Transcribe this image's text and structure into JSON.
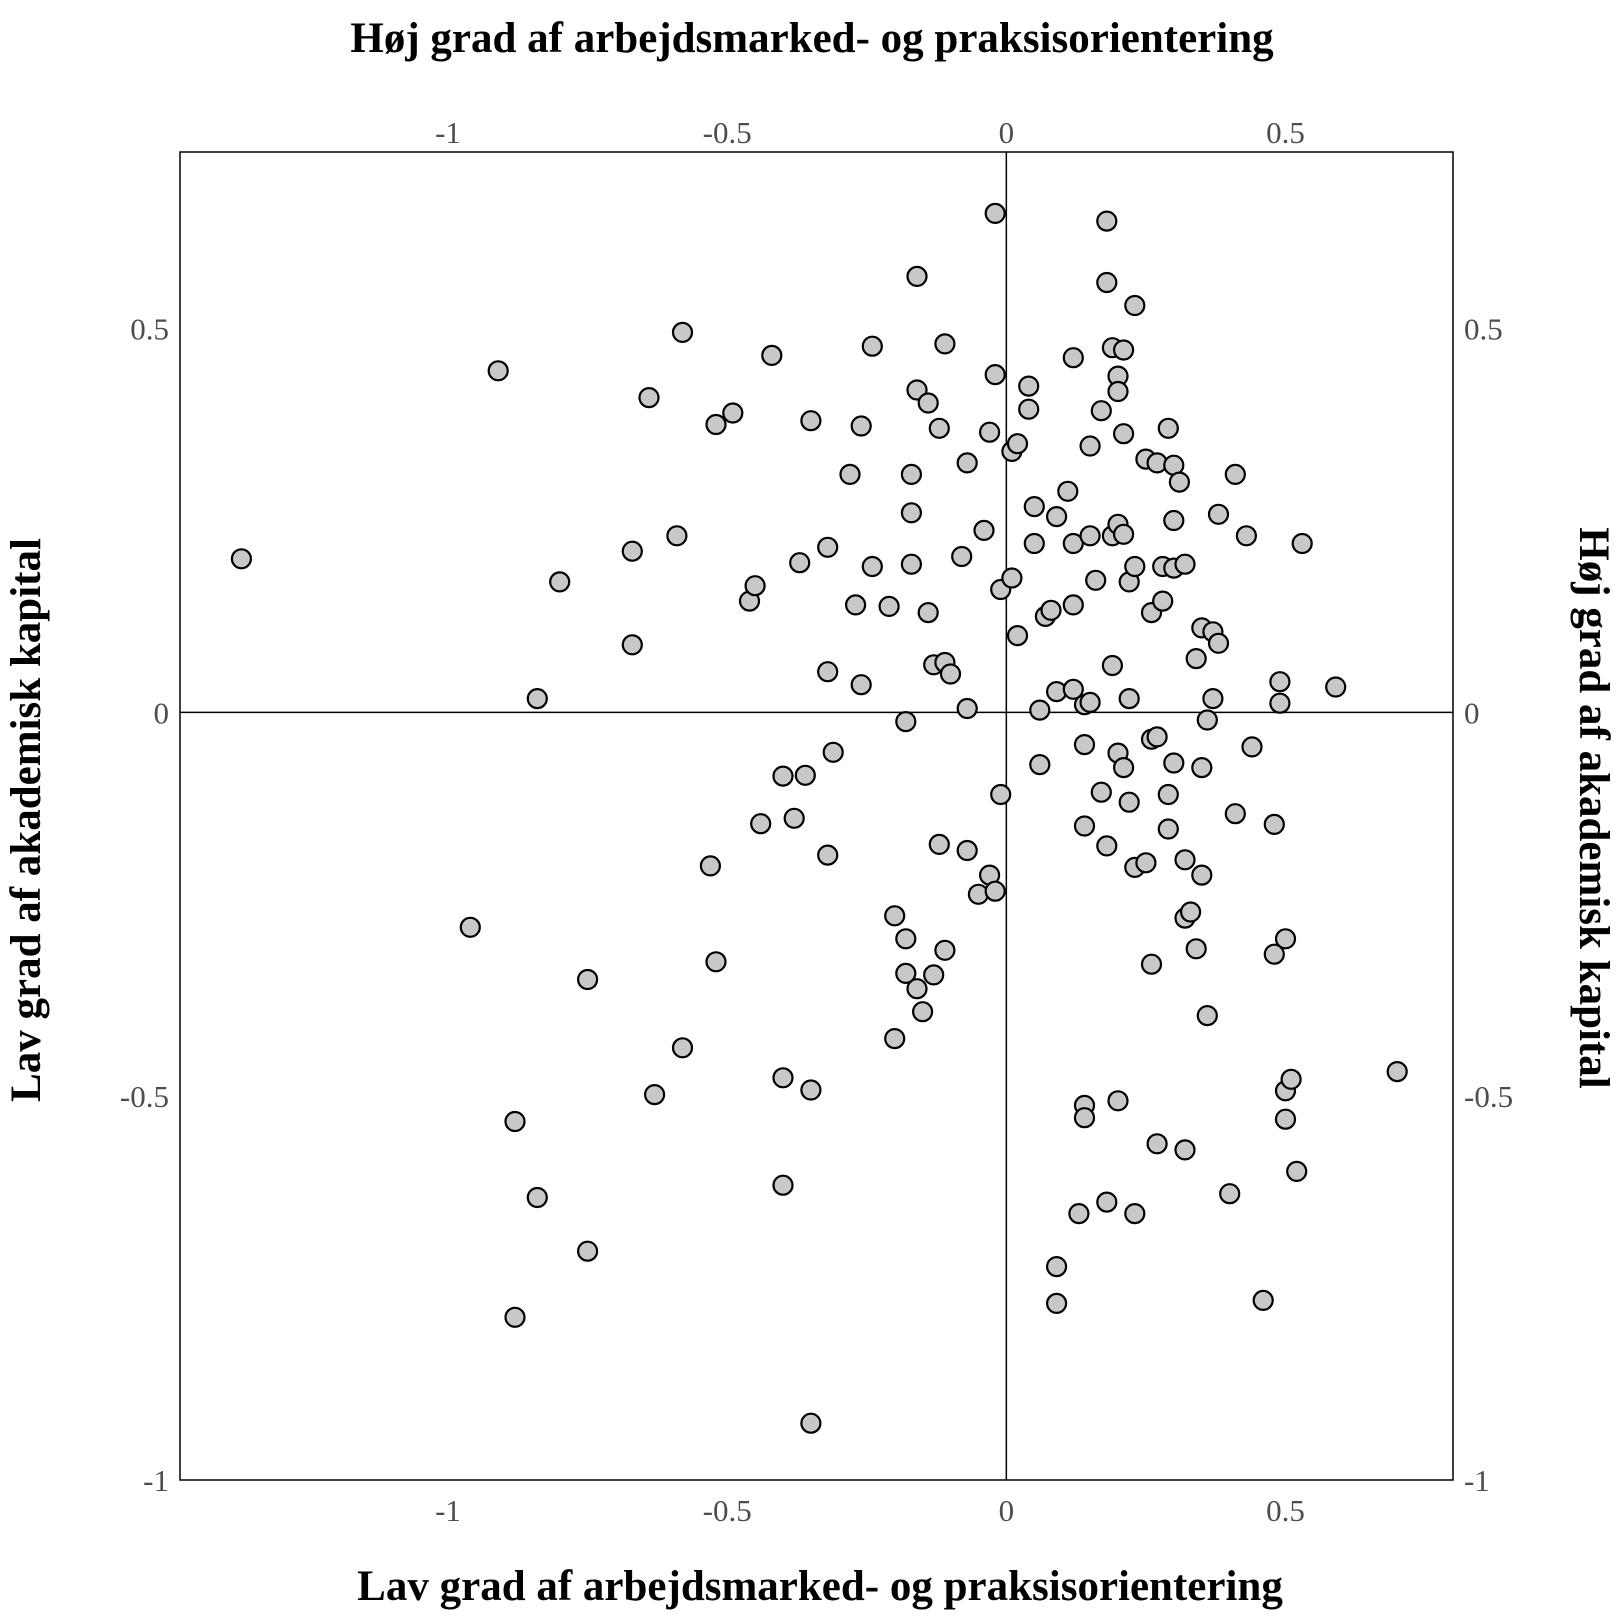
{
  "chart_data": {
    "type": "scatter",
    "title_top": "Høj grad af arbejdsmarked- og praksisorientering",
    "title_bottom": "Lav grad af arbejdsmarked- og praksisorientering",
    "title_left": "Lav grad af akademisk kapital",
    "title_right": "Høj grad af akademisk kapital",
    "xlim": [
      -1.48,
      0.8
    ],
    "ylim": [
      -1,
      0.73
    ],
    "x_ticks": [
      -1,
      -0.5,
      0,
      0.5
    ],
    "x_tick_labels": [
      "-1",
      "-0.5",
      "0",
      "0.5"
    ],
    "y_ticks": [
      0.5,
      0,
      -0.5,
      -1
    ],
    "y_tick_labels": [
      "0.5",
      "0",
      "-0.5",
      "-1"
    ],
    "reference_lines": {
      "x": 0,
      "y": 0
    },
    "grid": false,
    "legend": "none",
    "marker_fill": "#c8c8c8",
    "marker_stroke": "#000000",
    "points": [
      [
        -1.37,
        0.2
      ],
      [
        -0.91,
        0.445
      ],
      [
        -0.84,
        0.018
      ],
      [
        -0.8,
        0.17
      ],
      [
        -0.67,
        0.21
      ],
      [
        -0.67,
        0.088
      ],
      [
        -0.64,
        0.41
      ],
      [
        -0.59,
        0.23
      ],
      [
        -0.58,
        0.495
      ],
      [
        -0.52,
        0.375
      ],
      [
        -0.49,
        0.39
      ],
      [
        -0.46,
        0.145
      ],
      [
        -0.45,
        0.165
      ],
      [
        -0.42,
        0.465
      ],
      [
        -0.37,
        0.195
      ],
      [
        -0.35,
        0.38
      ],
      [
        -0.32,
        0.215
      ],
      [
        -0.32,
        0.053
      ],
      [
        -0.28,
        0.31
      ],
      [
        -0.27,
        0.14
      ],
      [
        -0.26,
        0.373
      ],
      [
        -0.26,
        0.036
      ],
      [
        -0.24,
        0.477
      ],
      [
        -0.24,
        0.19
      ],
      [
        -0.21,
        0.138
      ],
      [
        -0.18,
        -0.012
      ],
      [
        -0.17,
        0.193
      ],
      [
        -0.17,
        0.31
      ],
      [
        -0.17,
        0.26
      ],
      [
        -0.16,
        0.568
      ],
      [
        -0.16,
        0.42
      ],
      [
        -0.14,
        0.403
      ],
      [
        -0.14,
        0.13
      ],
      [
        -0.13,
        0.062
      ],
      [
        -0.12,
        0.37
      ],
      [
        -0.11,
        0.48
      ],
      [
        -0.11,
        0.065
      ],
      [
        -0.1,
        0.05
      ],
      [
        -0.08,
        0.203
      ],
      [
        -0.07,
        0.005
      ],
      [
        -0.07,
        0.325
      ],
      [
        -0.04,
        0.237
      ],
      [
        -0.03,
        0.365
      ],
      [
        -0.02,
        0.44
      ],
      [
        -0.02,
        0.65
      ],
      [
        -0.01,
        0.16
      ],
      [
        0.01,
        0.34
      ],
      [
        0.01,
        0.175
      ],
      [
        0.02,
        0.35
      ],
      [
        0.02,
        0.1
      ],
      [
        0.04,
        0.395
      ],
      [
        0.04,
        0.425
      ],
      [
        0.05,
        0.268
      ],
      [
        0.05,
        0.22
      ],
      [
        0.06,
        0.003
      ],
      [
        0.07,
        0.125
      ],
      [
        0.08,
        0.133
      ],
      [
        0.09,
        0.255
      ],
      [
        0.09,
        0.027
      ],
      [
        0.11,
        0.288
      ],
      [
        0.12,
        0.462
      ],
      [
        0.12,
        0.22
      ],
      [
        0.12,
        0.14
      ],
      [
        0.12,
        0.03
      ],
      [
        0.14,
        0.01
      ],
      [
        0.15,
        0.013
      ],
      [
        0.15,
        0.23
      ],
      [
        0.15,
        0.347
      ],
      [
        0.16,
        0.172
      ],
      [
        0.17,
        0.393
      ],
      [
        0.18,
        0.64
      ],
      [
        0.18,
        0.56
      ],
      [
        0.19,
        0.475
      ],
      [
        0.19,
        0.061
      ],
      [
        0.19,
        0.23
      ],
      [
        0.2,
        0.438
      ],
      [
        0.2,
        0.418
      ],
      [
        0.2,
        0.245
      ],
      [
        0.21,
        0.232
      ],
      [
        0.21,
        0.363
      ],
      [
        0.21,
        0.472
      ],
      [
        0.22,
        0.018
      ],
      [
        0.22,
        0.17
      ],
      [
        0.23,
        0.19
      ],
      [
        0.23,
        0.53
      ],
      [
        0.25,
        0.33
      ],
      [
        0.26,
        0.13
      ],
      [
        0.27,
        0.325
      ],
      [
        0.28,
        0.19
      ],
      [
        0.28,
        0.145
      ],
      [
        0.29,
        0.37
      ],
      [
        0.3,
        0.188
      ],
      [
        0.3,
        0.25
      ],
      [
        0.3,
        0.322
      ],
      [
        0.31,
        0.3
      ],
      [
        0.32,
        0.193
      ],
      [
        0.34,
        0.07
      ],
      [
        0.35,
        0.11
      ],
      [
        0.37,
        0.018
      ],
      [
        0.37,
        0.105
      ],
      [
        0.38,
        0.09
      ],
      [
        0.38,
        0.258
      ],
      [
        0.41,
        0.31
      ],
      [
        0.43,
        0.23
      ],
      [
        0.49,
        0.04
      ],
      [
        0.49,
        0.012
      ],
      [
        0.53,
        0.22
      ],
      [
        0.59,
        0.033
      ],
      [
        -0.96,
        -0.28
      ],
      [
        -0.88,
        -0.533
      ],
      [
        -0.84,
        -0.632
      ],
      [
        -0.75,
        -0.348
      ],
      [
        -0.75,
        -0.702
      ],
      [
        -0.88,
        -0.788
      ],
      [
        -0.63,
        -0.498
      ],
      [
        -0.58,
        -0.437
      ],
      [
        -0.52,
        -0.325
      ],
      [
        -0.53,
        -0.2
      ],
      [
        -0.44,
        -0.145
      ],
      [
        -0.4,
        -0.083
      ],
      [
        -0.38,
        -0.138
      ],
      [
        -0.36,
        -0.082
      ],
      [
        -0.32,
        -0.186
      ],
      [
        -0.31,
        -0.052
      ],
      [
        -0.4,
        -0.476
      ],
      [
        -0.4,
        -0.616
      ],
      [
        -0.35,
        -0.492
      ],
      [
        -0.35,
        -0.926
      ],
      [
        -0.2,
        -0.265
      ],
      [
        -0.18,
        -0.295
      ],
      [
        -0.18,
        -0.34
      ],
      [
        -0.16,
        -0.36
      ],
      [
        -0.15,
        -0.39
      ],
      [
        -0.13,
        -0.342
      ],
      [
        -0.12,
        -0.172
      ],
      [
        -0.11,
        -0.31
      ],
      [
        -0.2,
        -0.425
      ],
      [
        -0.07,
        -0.18
      ],
      [
        -0.05,
        -0.237
      ],
      [
        -0.03,
        -0.212
      ],
      [
        -0.02,
        -0.233
      ],
      [
        -0.01,
        -0.107
      ],
      [
        0.06,
        -0.068
      ],
      [
        0.14,
        -0.042
      ],
      [
        0.2,
        -0.053
      ],
      [
        0.21,
        -0.072
      ],
      [
        0.26,
        -0.035
      ],
      [
        0.27,
        -0.032
      ],
      [
        0.29,
        -0.107
      ],
      [
        0.3,
        -0.066
      ],
      [
        0.35,
        -0.072
      ],
      [
        0.36,
        -0.01
      ],
      [
        0.44,
        -0.045
      ],
      [
        0.17,
        -0.104
      ],
      [
        0.22,
        -0.117
      ],
      [
        0.14,
        -0.148
      ],
      [
        0.18,
        -0.174
      ],
      [
        0.23,
        -0.202
      ],
      [
        0.25,
        -0.196
      ],
      [
        0.29,
        -0.152
      ],
      [
        0.32,
        -0.192
      ],
      [
        0.35,
        -0.212
      ],
      [
        0.41,
        -0.132
      ],
      [
        0.48,
        -0.146
      ],
      [
        0.32,
        -0.268
      ],
      [
        0.33,
        -0.26
      ],
      [
        0.26,
        -0.328
      ],
      [
        0.34,
        -0.308
      ],
      [
        0.48,
        -0.315
      ],
      [
        0.5,
        -0.295
      ],
      [
        0.36,
        -0.395
      ],
      [
        0.14,
        -0.512
      ],
      [
        0.14,
        -0.528
      ],
      [
        0.2,
        -0.506
      ],
      [
        0.27,
        -0.562
      ],
      [
        0.32,
        -0.57
      ],
      [
        0.13,
        -0.653
      ],
      [
        0.18,
        -0.638
      ],
      [
        0.23,
        -0.653
      ],
      [
        0.4,
        -0.627
      ],
      [
        0.09,
        -0.722
      ],
      [
        0.09,
        -0.77
      ],
      [
        0.46,
        -0.766
      ],
      [
        0.5,
        -0.53
      ],
      [
        0.5,
        -0.493
      ],
      [
        0.51,
        -0.478
      ],
      [
        0.52,
        -0.598
      ],
      [
        0.7,
        -0.468
      ]
    ]
  }
}
